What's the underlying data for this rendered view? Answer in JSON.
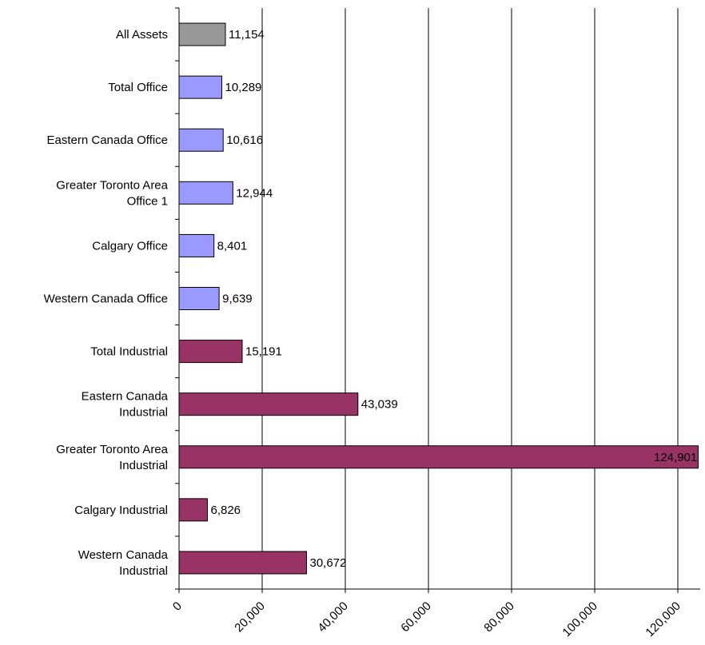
{
  "chart_data": {
    "type": "bar",
    "orientation": "horizontal",
    "categories": [
      [
        "All Assets"
      ],
      [
        "Total Office"
      ],
      [
        "Eastern Canada Office"
      ],
      [
        "Greater Toronto Area",
        "Office 1"
      ],
      [
        "Calgary Office"
      ],
      [
        "Western Canada Office"
      ],
      [
        "Total Industrial"
      ],
      [
        "Eastern Canada",
        "Industrial"
      ],
      [
        "Greater Toronto Area",
        "Industrial"
      ],
      [
        "Calgary Industrial"
      ],
      [
        "Western Canada",
        "Industrial"
      ]
    ],
    "values": [
      11154,
      10289,
      10616,
      12944,
      8401,
      9639,
      15191,
      43039,
      124901,
      6826,
      30672
    ],
    "value_labels": [
      "11,154",
      "10,289",
      "10,616",
      "12,944",
      "8,401",
      "9,639",
      "15,191",
      "43,039",
      "124,901",
      "6,826",
      "30,672"
    ],
    "bar_colors": [
      "#999999",
      "#9999ff",
      "#9999ff",
      "#9999ff",
      "#9999ff",
      "#9999ff",
      "#993366",
      "#993366",
      "#993366",
      "#993366",
      "#993366"
    ],
    "x_ticks": [
      0,
      20000,
      40000,
      60000,
      80000,
      100000,
      120000
    ],
    "x_tick_labels": [
      "0",
      "20,000",
      "40,000",
      "60,000",
      "80,000",
      "100,000",
      "120,000"
    ],
    "xlim": [
      0,
      125000
    ],
    "grid": "vertical",
    "legend": "none",
    "title": "",
    "xlabel": "",
    "ylabel": ""
  }
}
